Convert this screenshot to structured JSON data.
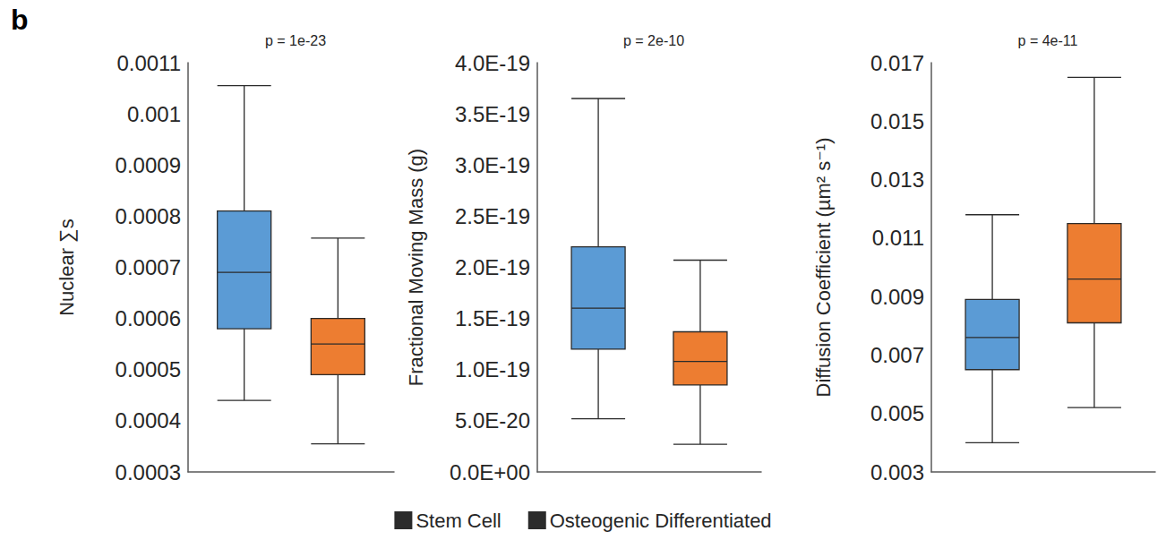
{
  "chart_data": [
    {
      "type": "boxplot",
      "title": "p = 1e-23",
      "annotations": [
        "b"
      ],
      "y_label": "Nuclear ∑s",
      "series": [
        {
          "name": "Stem Cell",
          "color": "#5b9bd5",
          "values": [
            {
              "min": 0.00044,
              "q1": 0.00058,
              "median": 0.00069,
              "q3": 0.00081,
              "max": 0.001055
            }
          ]
        },
        {
          "name": "Osteogenic Differentiated",
          "color": "#ed7d31",
          "values": [
            {
              "min": 0.000355,
              "q1": 0.00049,
              "median": 0.00055,
              "q3": 0.0006,
              "max": 0.000757
            }
          ]
        }
      ],
      "ylim": [
        0.0003,
        0.0011
      ],
      "yticks": [
        0.0003,
        0.0004,
        0.0005,
        0.0006,
        0.0007,
        0.0008,
        0.0009,
        0.001,
        0.0011
      ],
      "legend": "bottom",
      "tick_labels": "y",
      "grid": false
    },
    {
      "type": "boxplot",
      "title": "p = 2e-10",
      "y_label": "Fractional Moving Mass (g)",
      "series": [
        {
          "name": "Stem Cell",
          "color": "#5b9bd5",
          "values": [
            {
              "min": 5.2e-20,
              "q1": 1.2e-19,
              "median": 1.6e-19,
              "q3": 2.2e-19,
              "max": 3.65e-19
            }
          ]
        },
        {
          "name": "Osteogenic Differentiated",
          "color": "#ed7d31",
          "values": [
            {
              "min": 2.7e-20,
              "q1": 8.5e-20,
              "median": 1.08e-19,
              "q3": 1.37e-19,
              "max": 2.07e-19
            }
          ]
        }
      ],
      "ylim": [
        0,
        4e-19
      ],
      "yticks": [
        {
          "value": 0,
          "label": "0.0E+00"
        },
        {
          "value": 5e-20,
          "label": "5.0E-20"
        },
        {
          "value": 1e-19,
          "label": "1.0E-19"
        },
        {
          "value": 1.5e-19,
          "label": "1.5E-19"
        },
        {
          "value": 2e-19,
          "label": "2.0E-19"
        },
        {
          "value": 2.5e-19,
          "label": "2.5E-19"
        },
        {
          "value": 3e-19,
          "label": "3.0E-19"
        },
        {
          "value": 3.5e-19,
          "label": "3.5E-19"
        },
        {
          "value": 4e-19,
          "label": "4.0E-19"
        }
      ],
      "legend": "bottom",
      "tick_labels": "y",
      "grid": false
    },
    {
      "type": "boxplot",
      "title": "p = 4e-11",
      "y_label": "Diffusion Coefficient (µm² s⁻¹)",
      "series": [
        {
          "name": "Stem Cell",
          "color": "#5b9bd5",
          "values": [
            {
              "min": 0.004,
              "q1": 0.0065,
              "median": 0.0076,
              "q3": 0.0089,
              "max": 0.0118
            }
          ]
        },
        {
          "name": "Osteogenic Differentiated",
          "color": "#ed7d31",
          "values": [
            {
              "min": 0.0052,
              "q1": 0.0081,
              "median": 0.0096,
              "q3": 0.0115,
              "max": 0.0165
            }
          ]
        }
      ],
      "ylim": [
        0.003,
        0.017
      ],
      "yticks": [
        0.003,
        0.005,
        0.007,
        0.009,
        0.011,
        0.013,
        0.015,
        0.017
      ],
      "legend": "bottom",
      "tick_labels": "y",
      "grid": false
    }
  ]
}
